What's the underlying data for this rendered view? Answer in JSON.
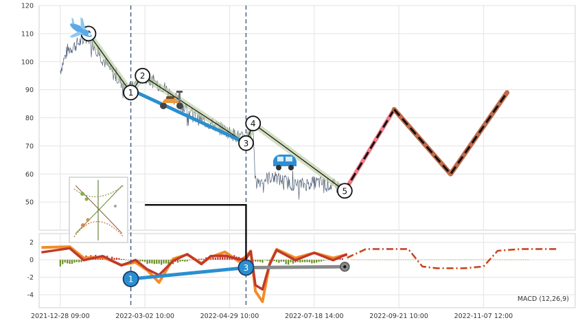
{
  "chart_data": {
    "type": "line",
    "price_panel": {
      "ylim": [
        40,
        120
      ],
      "yticks": [
        50,
        60,
        70,
        80,
        90,
        100,
        110,
        120
      ],
      "wave_points": [
        {
          "label": "0",
          "x": 0.6,
          "y": 110
        },
        {
          "label": "1",
          "x": 1.5,
          "y": 89
        },
        {
          "label": "2",
          "x": 1.75,
          "y": 95
        },
        {
          "label": "3",
          "x": 3.95,
          "y": 71
        },
        {
          "label": "4",
          "x": 4.1,
          "y": 78
        },
        {
          "label": "5",
          "x": 6.05,
          "y": 54
        }
      ],
      "trend_1_3": {
        "x": [
          1.5,
          3.95
        ],
        "y": [
          90,
          71
        ]
      },
      "projection_pink": {
        "x": [
          6.05,
          7.1
        ],
        "y": [
          54,
          83
        ]
      },
      "projection_brown": {
        "x": [
          7.1,
          8.3,
          9.5
        ],
        "y": [
          83,
          60,
          89
        ]
      },
      "vertical_markers_x": [
        1.5,
        3.95
      ],
      "connector": {
        "from_x": 1.8,
        "y_price": 49,
        "to_x": 3.95
      }
    },
    "macd_panel": {
      "label": "MACD (12,26,9)",
      "ylim": [
        -5.5,
        3
      ],
      "yticks": [
        2,
        0,
        -2,
        -4
      ],
      "points": [
        {
          "label": "1",
          "x": 1.5,
          "y": -2.2
        },
        {
          "label": "3",
          "x": 3.95,
          "y": -0.9
        },
        {
          "label": "",
          "x": 6.05,
          "y": -0.8
        }
      ]
    },
    "x_axis": {
      "ticks": [
        {
          "x": 0,
          "label": "2021-12-28 09:00"
        },
        {
          "x": 1.8,
          "label": "2022-03-02 10:00"
        },
        {
          "x": 3.6,
          "label": "2022-04-29 10:00"
        },
        {
          "x": 5.4,
          "label": "2022-07-18 14:00"
        },
        {
          "x": 7.2,
          "label": "2022-09-21 10:00"
        },
        {
          "x": 9.0,
          "label": "2022-11-07 12:00"
        }
      ],
      "xlim": [
        -0.45,
        10.95
      ]
    }
  }
}
